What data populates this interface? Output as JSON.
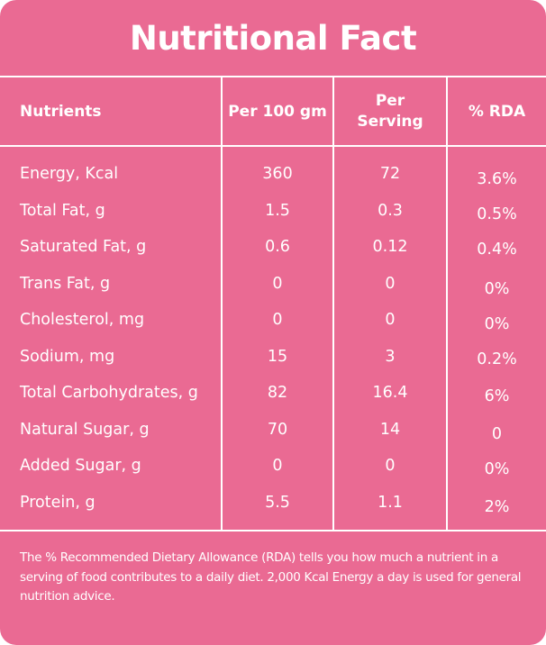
{
  "title": "Nutritional Fact",
  "headers": [
    "Nutrients",
    "Per 100 gm",
    "Per Serving",
    "% RDA"
  ],
  "rows": [
    {
      "nutrient": "Energy, Kcal",
      "per100": "360",
      "perServing": "72",
      "rda": "3.6%"
    },
    {
      "nutrient": "Total Fat, g",
      "per100": "1.5",
      "perServing": "0.3",
      "rda": "0.5%"
    },
    {
      "nutrient": "Saturated Fat, g",
      "per100": "0.6",
      "perServing": "0.12",
      "rda": "0.4%"
    },
    {
      "nutrient": "Trans Fat, g",
      "per100": "0",
      "perServing": "0",
      "rda": "0%"
    },
    {
      "nutrient": "Cholesterol, mg",
      "per100": "0",
      "perServing": "0",
      "rda": "0%"
    },
    {
      "nutrient": "Sodium, mg",
      "per100": "15",
      "perServing": "3",
      "rda": "0.2%"
    },
    {
      "nutrient": "Total Carbohydrates, g",
      "per100": "82",
      "perServing": "16.4",
      "rda": "6%"
    },
    {
      "nutrient": "Natural Sugar, g",
      "per100": "70",
      "perServing": "14",
      "rda": "0"
    },
    {
      "nutrient": "Added Sugar, g",
      "per100": "0",
      "perServing": "0",
      "rda": "0%"
    },
    {
      "nutrient": "Protein, g",
      "per100": "5.5",
      "perServing": "1.1",
      "rda": "2%"
    }
  ],
  "footer": "The % Recommended Dietary Allowance (RDA) tells you how much a nutrient in a serving of food contributes to a daily diet. 2,000 Kcal Energy a day is used for general nutrition advice.",
  "colors": {
    "background": "#ea6a93",
    "text": "#ffffff"
  }
}
